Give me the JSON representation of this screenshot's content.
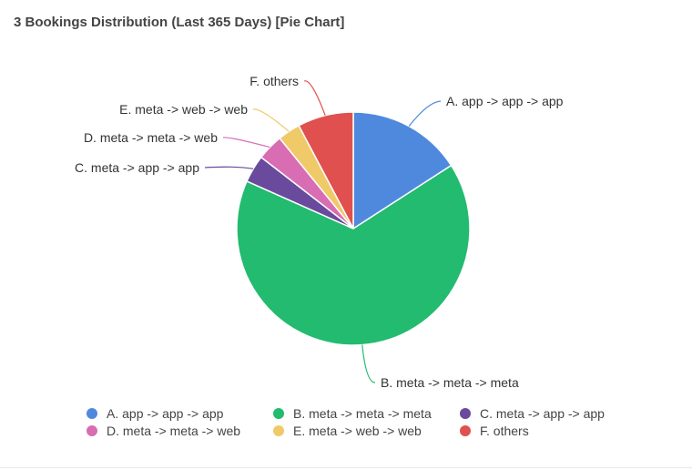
{
  "panel": {
    "title": "3 Bookings Distribution (Last 365 Days) [Pie Chart]"
  },
  "chart_data": {
    "type": "pie",
    "title": "3 Bookings Distribution (Last 365 Days) [Pie Chart]",
    "slices": [
      {
        "label": "A. app -> app -> app",
        "value": 16.2,
        "color": "#4f89de"
      },
      {
        "label": "B. meta -> meta -> meta",
        "value": 67.1,
        "color": "#22bb6f"
      },
      {
        "label": "C. meta -> app -> app",
        "value": 3.9,
        "color": "#6a4a9c"
      },
      {
        "label": "D. meta -> meta -> web",
        "value": 3.7,
        "color": "#d86db3"
      },
      {
        "label": "E. meta -> web -> web",
        "value": 3.2,
        "color": "#f0c968"
      },
      {
        "label": "F. others",
        "value": 7.9,
        "color": "#e0504e"
      }
    ],
    "legend_position": "bottom",
    "start_angle": "top",
    "direction": "clockwise"
  }
}
